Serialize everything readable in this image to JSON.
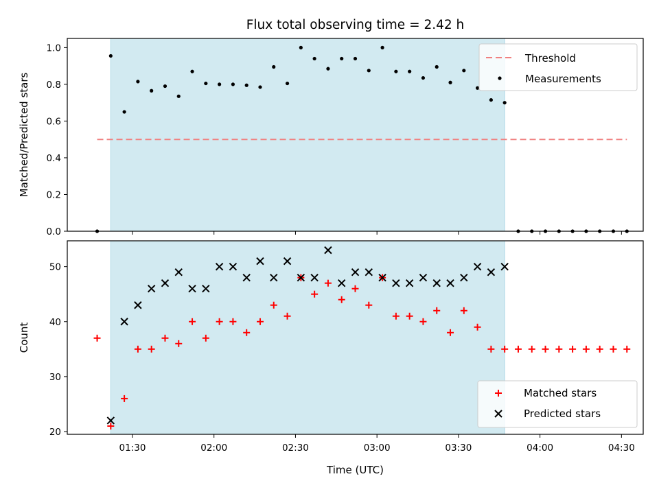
{
  "chart_data": [
    {
      "type": "scatter",
      "title": "Flux total observing time = 2.42 h",
      "xlabel": "",
      "ylabel": "Matched/Predicted stars",
      "ylim": [
        0,
        1.05
      ],
      "yticks": [
        "0.0",
        "0.2",
        "0.4",
        "0.6",
        "0.8",
        "1.0"
      ],
      "ytick_values": [
        0,
        0.2,
        0.4,
        0.6,
        0.8,
        1.0
      ],
      "xticks_shown_labels": false,
      "grid": false,
      "legend_position": "top-right",
      "shaded_interval": {
        "start": "01:22",
        "end": "03:47",
        "color": "#add8e6"
      },
      "threshold": {
        "name": "Threshold",
        "value": 0.5,
        "x_start": "01:17",
        "x_end": "04:32",
        "color": "#f08080"
      },
      "series": [
        {
          "name": "Measurements",
          "color": "#000000",
          "x": [
            "01:17",
            "01:22",
            "01:27",
            "01:32",
            "01:37",
            "01:42",
            "01:47",
            "01:52",
            "01:57",
            "02:02",
            "02:07",
            "02:12",
            "02:17",
            "02:22",
            "02:27",
            "02:32",
            "02:37",
            "02:42",
            "02:47",
            "02:52",
            "02:57",
            "03:02",
            "03:07",
            "03:12",
            "03:17",
            "03:22",
            "03:27",
            "03:32",
            "03:37",
            "03:42",
            "03:47",
            "03:52",
            "03:57",
            "04:02",
            "04:07",
            "04:12",
            "04:17",
            "04:22",
            "04:27",
            "04:32"
          ],
          "y": [
            0.0,
            0.955,
            0.65,
            0.815,
            0.765,
            0.79,
            0.735,
            0.87,
            0.805,
            0.8,
            0.8,
            0.795,
            0.785,
            0.895,
            0.805,
            1.0,
            0.94,
            0.885,
            0.94,
            0.94,
            0.875,
            1.0,
            0.87,
            0.87,
            0.835,
            0.895,
            0.81,
            0.875,
            0.78,
            0.715,
            0.7,
            0.0,
            0.0,
            0.0,
            0.0,
            0.0,
            0.0,
            0.0,
            0.0,
            0.0
          ]
        }
      ]
    },
    {
      "type": "scatter",
      "title": "",
      "xlabel": "Time (UTC)",
      "ylabel": "Count",
      "ylim": [
        19.5,
        54.7
      ],
      "yticks": [
        "20",
        "30",
        "40",
        "50"
      ],
      "ytick_values": [
        20,
        30,
        40,
        50
      ],
      "xlim": [
        "01:06",
        "04:38"
      ],
      "xticks": [
        "01:30",
        "02:00",
        "02:30",
        "03:00",
        "03:30",
        "04:00",
        "04:30"
      ],
      "grid": false,
      "legend_position": "bottom-right",
      "shaded_interval": {
        "start": "01:22",
        "end": "03:47",
        "color": "#add8e6"
      },
      "series": [
        {
          "name": "Matched stars",
          "marker": "plus",
          "color": "#ff0000",
          "x": [
            "01:17",
            "01:22",
            "01:27",
            "01:32",
            "01:37",
            "01:42",
            "01:47",
            "01:52",
            "01:57",
            "02:02",
            "02:07",
            "02:12",
            "02:17",
            "02:22",
            "02:27",
            "02:32",
            "02:37",
            "02:42",
            "02:47",
            "02:52",
            "02:57",
            "03:02",
            "03:07",
            "03:12",
            "03:17",
            "03:22",
            "03:27",
            "03:32",
            "03:37",
            "03:42",
            "03:47",
            "03:52",
            "03:57",
            "04:02",
            "04:07",
            "04:12",
            "04:17",
            "04:22",
            "04:27",
            "04:32"
          ],
          "y": [
            37,
            21,
            26,
            35,
            35,
            37,
            36,
            40,
            37,
            40,
            40,
            38,
            40,
            43,
            41,
            48,
            45,
            47,
            44,
            46,
            43,
            48,
            41,
            41,
            40,
            42,
            38,
            42,
            39,
            35,
            35,
            35,
            35,
            35,
            35,
            35,
            35,
            35,
            35,
            35
          ]
        },
        {
          "name": "Predicted stars",
          "marker": "x",
          "color": "#000000",
          "x": [
            "01:22",
            "01:27",
            "01:32",
            "01:37",
            "01:42",
            "01:47",
            "01:52",
            "01:57",
            "02:02",
            "02:07",
            "02:12",
            "02:17",
            "02:22",
            "02:27",
            "02:32",
            "02:37",
            "02:42",
            "02:47",
            "02:52",
            "02:57",
            "03:02",
            "03:07",
            "03:12",
            "03:17",
            "03:22",
            "03:27",
            "03:32",
            "03:37",
            "03:42",
            "03:47"
          ],
          "y": [
            22,
            40,
            43,
            46,
            47,
            49,
            46,
            46,
            50,
            50,
            48,
            51,
            48,
            51,
            48,
            48,
            53,
            47,
            49,
            49,
            48,
            47,
            47,
            48,
            47,
            47,
            48,
            50,
            49,
            50
          ]
        }
      ]
    }
  ]
}
